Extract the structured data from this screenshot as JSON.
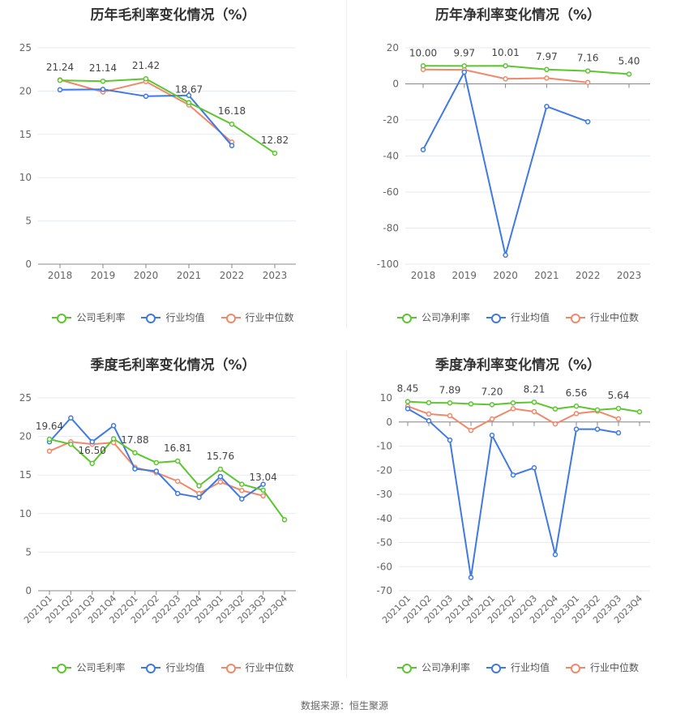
{
  "colors": {
    "company": "#5cc62e",
    "avg": "#3f79e1",
    "median": "#f0896b",
    "grid": "#e6e9f3",
    "axis": "#888888",
    "tick_text": "#666666",
    "label_text": "#444444"
  },
  "legend": {
    "annual_gross": [
      "公司毛利率",
      "行业均值",
      "行业中位数"
    ],
    "annual_net": [
      "公司净利率",
      "行业均值",
      "行业中位数"
    ],
    "quarter_gross": [
      "公司毛利率",
      "行业均值",
      "行业中位数"
    ],
    "quarter_net": [
      "公司净利率",
      "行业均值",
      "行业中位数"
    ]
  },
  "source": "数据来源：恒生聚源",
  "chart_data": [
    {
      "type": "line",
      "title": "历年毛利率变化情况（%）",
      "x": [
        "2018",
        "2019",
        "2020",
        "2021",
        "2022",
        "2023"
      ],
      "ylim": [
        0,
        25
      ],
      "yticks": [
        0,
        5,
        10,
        15,
        20,
        25
      ],
      "grid": true,
      "legend_position": "bottom",
      "series": [
        {
          "name": "公司毛利率",
          "values": [
            21.24,
            21.14,
            21.42,
            18.67,
            16.18,
            12.82
          ]
        },
        {
          "name": "行业均值",
          "values": [
            20.15,
            20.2,
            19.4,
            19.5,
            13.7,
            null
          ]
        },
        {
          "name": "行业中位数",
          "values": [
            21.3,
            19.9,
            21.1,
            18.4,
            14.1,
            null
          ]
        }
      ],
      "labels": [
        "21.24",
        "21.14",
        "21.42",
        "18.67",
        "16.18",
        "12.82"
      ]
    },
    {
      "type": "line",
      "title": "历年净利率变化情况（%）",
      "x": [
        "2018",
        "2019",
        "2020",
        "2021",
        "2022",
        "2023"
      ],
      "ylim": [
        -100,
        20
      ],
      "yticks": [
        -100,
        -80,
        -60,
        -40,
        -20,
        0,
        20
      ],
      "grid": true,
      "legend_position": "bottom",
      "series": [
        {
          "name": "公司净利率",
          "values": [
            10.0,
            9.97,
            10.01,
            7.97,
            7.16,
            5.4
          ]
        },
        {
          "name": "行业均值",
          "values": [
            -36.5,
            6.5,
            -95.0,
            -12.5,
            -21.0,
            null
          ]
        },
        {
          "name": "行业中位数",
          "values": [
            8.0,
            7.8,
            2.8,
            3.2,
            0.8,
            null
          ]
        }
      ],
      "labels": [
        "10.00",
        "9.97",
        "10.01",
        "7.97",
        "7.16",
        "5.40"
      ]
    },
    {
      "type": "line",
      "title": "季度毛利率变化情况（%）",
      "x": [
        "2021Q1",
        "2021Q2",
        "2021Q3",
        "2021Q4",
        "2022Q1",
        "2022Q2",
        "2022Q3",
        "2022Q4",
        "2023Q1",
        "2023Q2",
        "2023Q3",
        "2023Q4"
      ],
      "ylim": [
        0,
        25
      ],
      "yticks": [
        0,
        5,
        10,
        15,
        20,
        25
      ],
      "grid": true,
      "legend_position": "bottom",
      "series": [
        {
          "name": "公司毛利率",
          "values": [
            19.64,
            19.0,
            16.5,
            19.7,
            17.88,
            16.6,
            16.81,
            13.6,
            15.76,
            13.8,
            13.04,
            9.2
          ]
        },
        {
          "name": "行业均值",
          "values": [
            19.3,
            22.4,
            19.3,
            21.4,
            15.8,
            15.5,
            12.6,
            12.1,
            14.8,
            11.9,
            13.8,
            null
          ]
        },
        {
          "name": "行业中位数",
          "values": [
            18.1,
            19.3,
            19.0,
            19.2,
            16.0,
            15.3,
            14.2,
            12.6,
            14.1,
            13.0,
            12.3,
            null
          ]
        }
      ],
      "labels": [
        "19.64",
        "",
        "16.50",
        "",
        "17.88",
        "",
        "16.81",
        "",
        "15.76",
        "",
        "13.04",
        ""
      ]
    },
    {
      "type": "line",
      "title": "季度净利率变化情况（%）",
      "x": [
        "2021Q1",
        "2021Q2",
        "2021Q3",
        "2021Q4",
        "2022Q1",
        "2022Q2",
        "2022Q3",
        "2022Q4",
        "2023Q1",
        "2023Q2",
        "2023Q3",
        "2023Q4"
      ],
      "ylim": [
        -70,
        10
      ],
      "yticks": [
        -70,
        -60,
        -50,
        -40,
        -30,
        -20,
        -10,
        0,
        10
      ],
      "grid": true,
      "legend_position": "bottom",
      "series": [
        {
          "name": "公司净利率",
          "values": [
            8.45,
            8.0,
            7.89,
            7.5,
            7.2,
            7.9,
            8.21,
            5.4,
            6.56,
            5.0,
            5.64,
            4.2
          ]
        },
        {
          "name": "行业均值",
          "values": [
            5.5,
            0.5,
            -7.5,
            -64.5,
            -5.5,
            -22.0,
            -19.0,
            -55.0,
            -3.0,
            -3.0,
            -4.5,
            null
          ]
        },
        {
          "name": "行业中位数",
          "values": [
            6.5,
            3.3,
            2.6,
            -3.5,
            1.2,
            5.5,
            4.3,
            -0.8,
            3.5,
            4.5,
            1.3,
            null
          ]
        }
      ],
      "labels": [
        "8.45",
        "",
        "7.89",
        "",
        "7.20",
        "",
        "8.21",
        "",
        "6.56",
        "",
        "5.64",
        ""
      ]
    }
  ]
}
